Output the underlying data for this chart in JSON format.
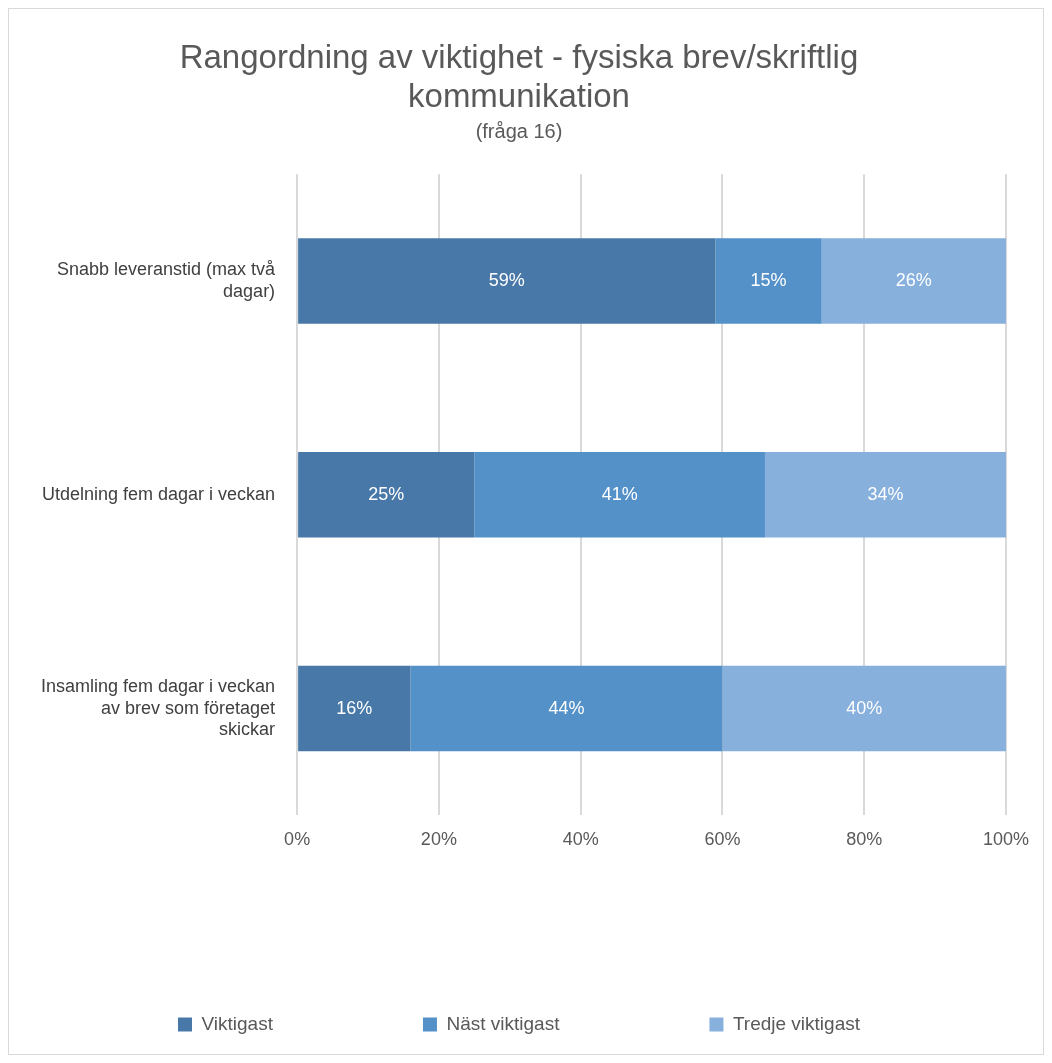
{
  "chart_data": {
    "type": "bar",
    "orientation": "horizontal",
    "stacked": true,
    "title": "Rangordning av viktighet - fysiska brev/skriftlig kommunikation",
    "subtitle": "(fråga 16)",
    "categories": [
      "Snabb leveranstid (max två dagar)",
      "Utdelning fem dagar i veckan",
      "Insamling fem dagar i veckan av brev som företaget skickar"
    ],
    "series": [
      {
        "name": "Viktigast",
        "color": "#4878a8",
        "values": [
          59,
          25,
          16
        ],
        "value_labels": [
          "59%",
          "25%",
          "16%"
        ]
      },
      {
        "name": "Näst viktigast",
        "color": "#5591c9",
        "values": [
          15,
          41,
          44
        ],
        "value_labels": [
          "15%",
          "41%",
          "44%"
        ]
      },
      {
        "name": "Tredje viktigast",
        "color": "#87b0dd",
        "values": [
          26,
          34,
          40
        ],
        "value_labels": [
          "26%",
          "34%",
          "40%"
        ]
      }
    ],
    "xlim": [
      0,
      100
    ],
    "xticks": [
      {
        "value": 0,
        "label": "0%"
      },
      {
        "value": 20,
        "label": "20%"
      },
      {
        "value": 40,
        "label": "40%"
      },
      {
        "value": 60,
        "label": "60%"
      },
      {
        "value": 80,
        "label": "80%"
      },
      {
        "value": 100,
        "label": "100%"
      }
    ],
    "grid": "x",
    "legend": "bottom"
  }
}
